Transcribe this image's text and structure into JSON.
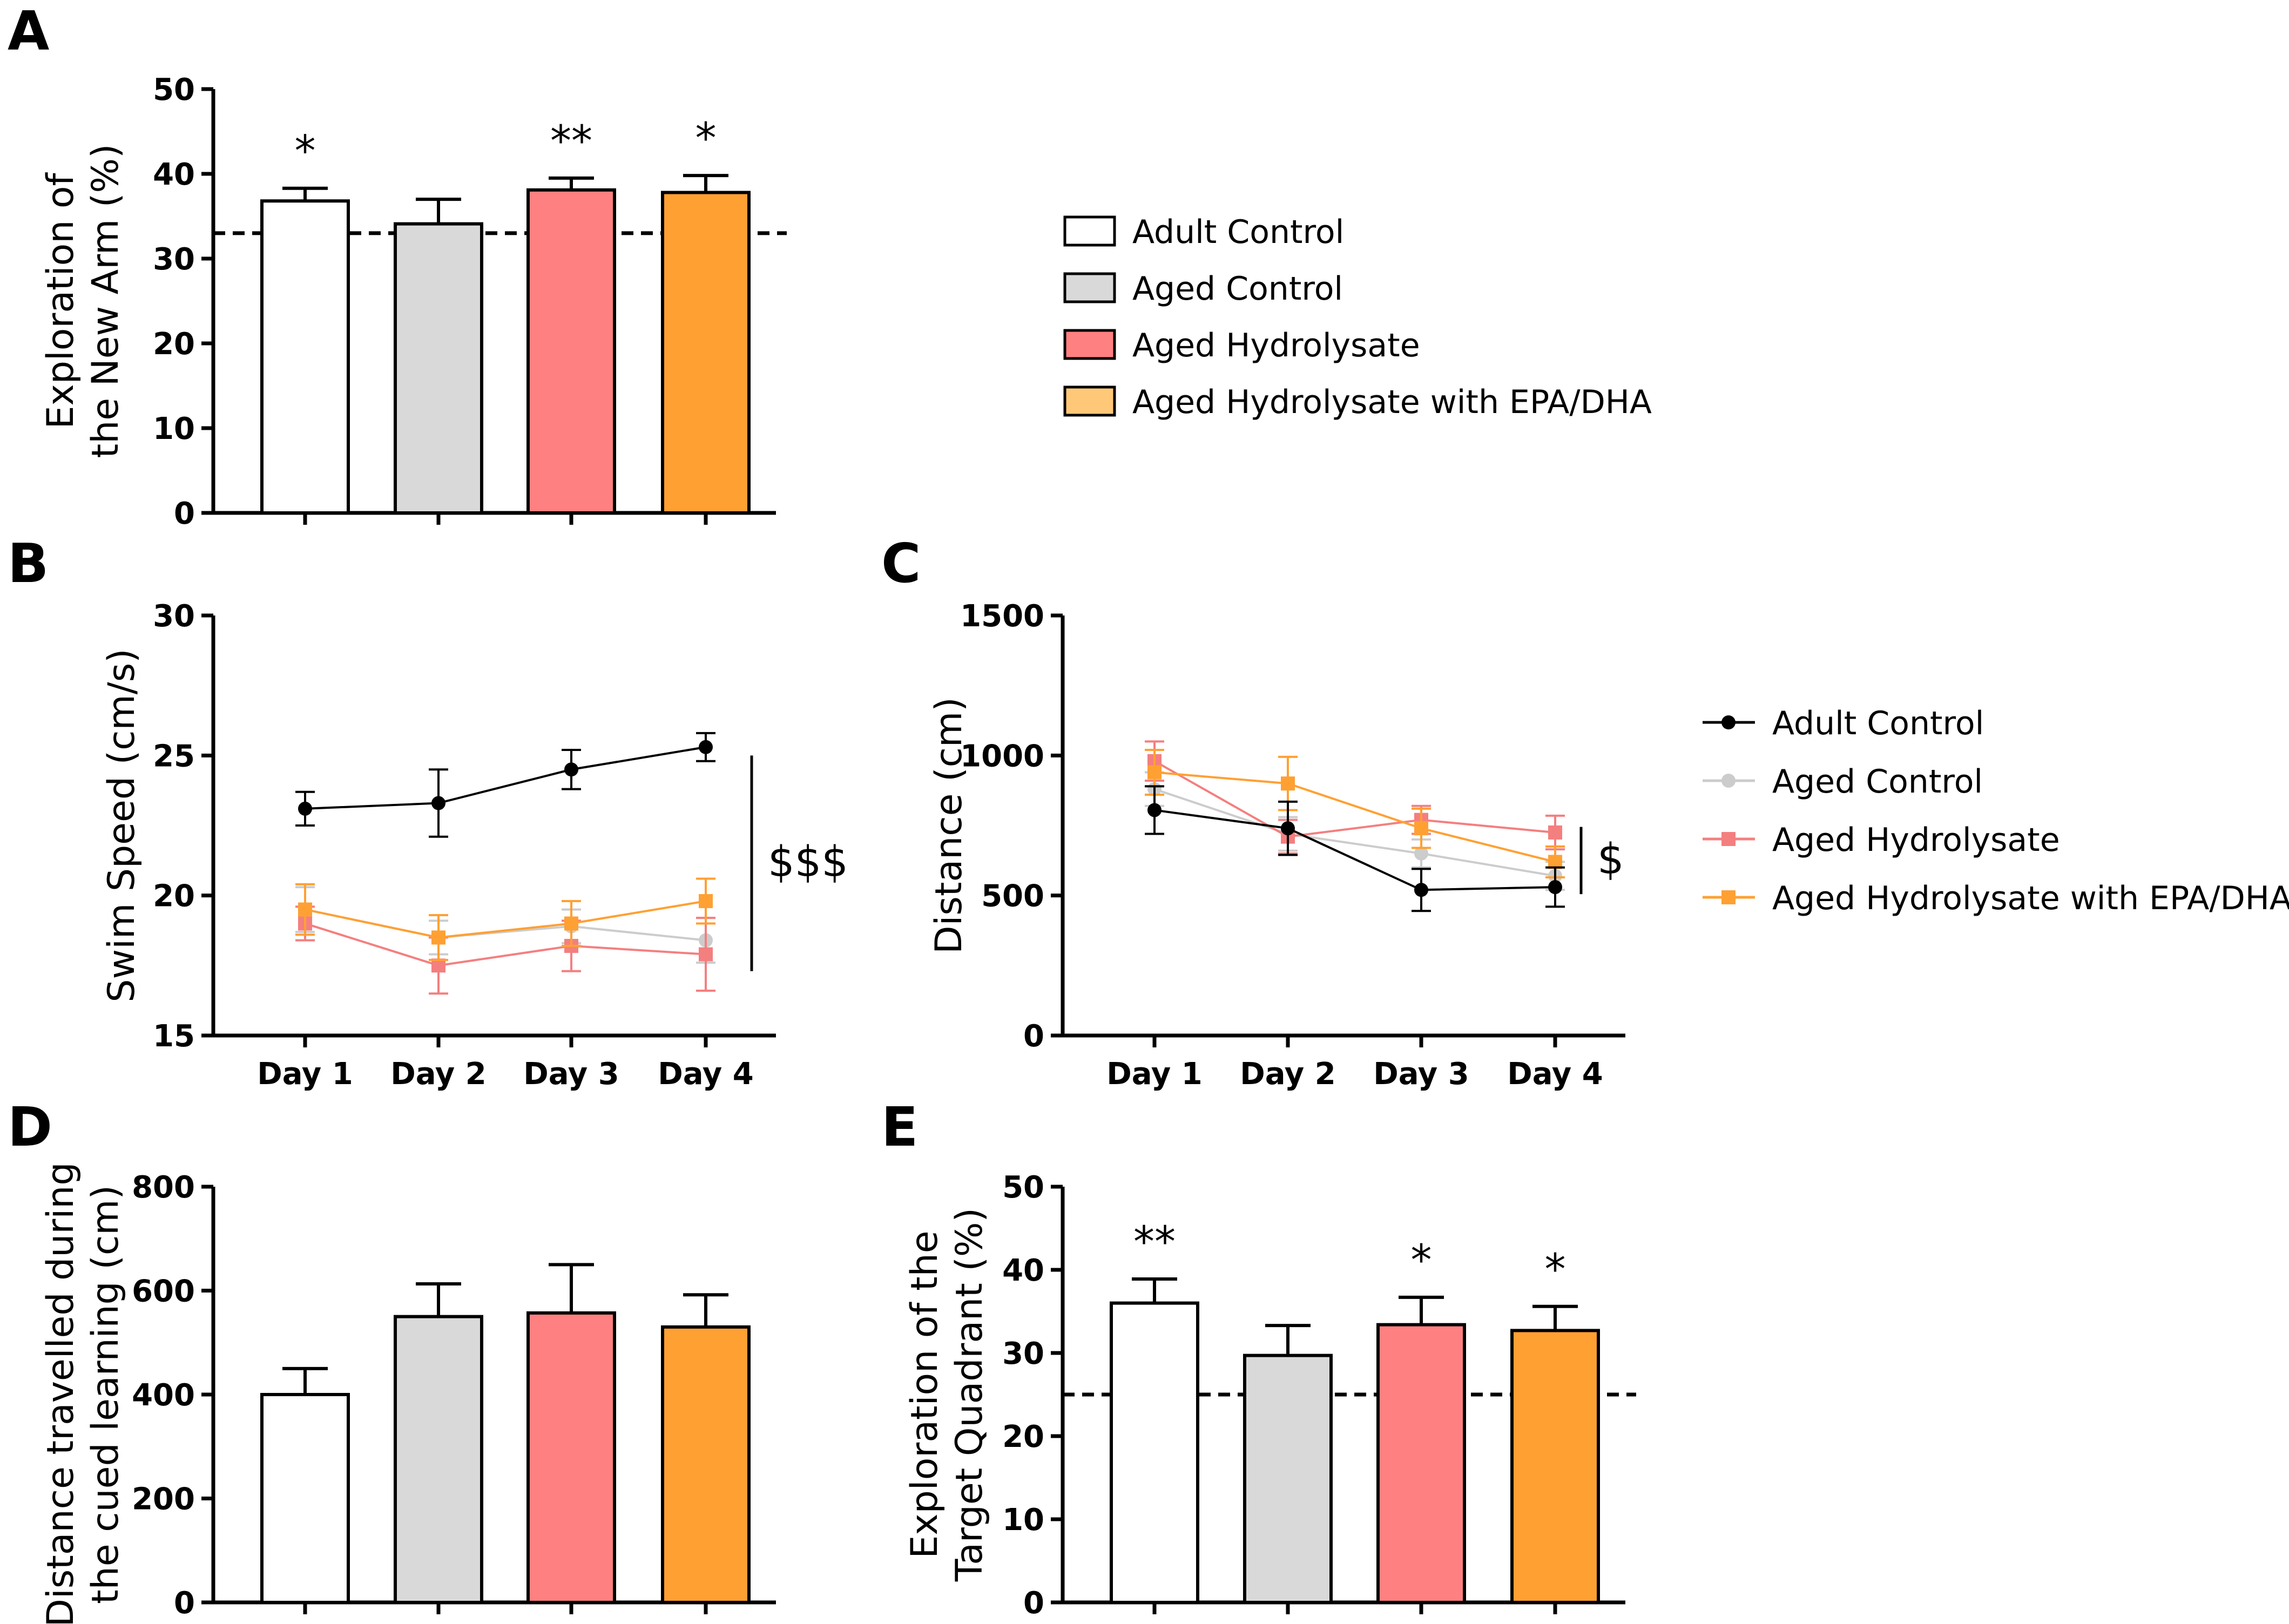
{
  "groups": [
    "Adult Control",
    "Aged Control",
    "Aged Hydrolysate",
    "Aged Hydrolysate with EPA/DHA"
  ],
  "colors": {
    "adult_bar": "#ffffff",
    "aged_bar": "#d9d9d9",
    "hydro_bar": "#ff8080",
    "epa_bar": "#ffa033",
    "adult_line": "#000000",
    "aged_line": "#cccccc",
    "hydro_line": "#f47f7f",
    "epa_line": "#ffa033",
    "epa_legend_fill": "#ffc878"
  },
  "legend_top": {
    "items": [
      "Adult Control",
      "Aged Control",
      "Aged Hydrolysate",
      "Aged Hydrolysate with EPA/DHA"
    ]
  },
  "legend_right": {
    "items": [
      "Adult Control",
      "Aged Control",
      "Aged Hydrolysate",
      "Aged Hydrolysate with EPA/DHA"
    ]
  },
  "chart_data": [
    {
      "panel": "A",
      "type": "bar",
      "ylabel": [
        "Exploration of",
        "the New Arm (%)"
      ],
      "ylim": [
        0,
        50
      ],
      "yticks": [
        "0",
        "10",
        "20",
        "30",
        "40",
        "50"
      ],
      "categories": [
        "Adult Control",
        "Aged Control",
        "Aged Hydrolysate",
        "Aged Hydrolysate with EPA/DHA"
      ],
      "values": [
        36.8,
        34.1,
        38.1,
        37.8
      ],
      "errors": [
        1.5,
        2.9,
        1.4,
        2.0
      ],
      "significance": [
        "*",
        "",
        "**",
        "*"
      ],
      "reference_line": 33
    },
    {
      "panel": "B",
      "type": "line",
      "ylabel": "Swim  Speed (cm/s)",
      "ylim": [
        15,
        30
      ],
      "yticks": [
        "15",
        "20",
        "25",
        "30"
      ],
      "x": [
        "Day 1",
        "Day 2",
        "Day 3",
        "Day 4"
      ],
      "series": [
        {
          "name": "Adult Control",
          "values": [
            23.1,
            23.3,
            24.5,
            25.3
          ],
          "errors": [
            0.6,
            1.2,
            0.7,
            0.5
          ]
        },
        {
          "name": "Aged Control",
          "values": [
            19.5,
            18.5,
            18.9,
            18.4
          ],
          "errors": [
            0.8,
            0.6,
            0.6,
            0.8
          ]
        },
        {
          "name": "Aged Hydrolysate",
          "values": [
            19.0,
            17.5,
            18.2,
            17.9
          ],
          "errors": [
            0.6,
            1.0,
            0.9,
            1.3
          ]
        },
        {
          "name": "Aged Hydrolysate with EPA/DHA",
          "values": [
            19.5,
            18.5,
            19.0,
            19.8
          ],
          "errors": [
            0.9,
            0.8,
            0.8,
            0.8
          ]
        }
      ],
      "annotation": "$$$"
    },
    {
      "panel": "C",
      "type": "line",
      "ylabel": "Distance (cm)",
      "ylim": [
        0,
        1500
      ],
      "yticks": [
        "0",
        "500",
        "1000",
        "1500"
      ],
      "x": [
        "Day 1",
        "Day 2",
        "Day 3",
        "Day 4"
      ],
      "series": [
        {
          "name": "Adult Control",
          "values": [
            805,
            740,
            520,
            530
          ],
          "errors": [
            85,
            95,
            75,
            70
          ]
        },
        {
          "name": "Aged Control",
          "values": [
            880,
            720,
            650,
            570
          ],
          "errors": [
            60,
            60,
            50,
            50
          ]
        },
        {
          "name": "Aged Hydrolysate",
          "values": [
            980,
            710,
            770,
            725
          ],
          "errors": [
            70,
            60,
            50,
            60
          ]
        },
        {
          "name": "Aged Hydrolysate with EPA/DHA",
          "values": [
            940,
            900,
            740,
            620
          ],
          "errors": [
            80,
            95,
            70,
            55
          ]
        }
      ],
      "annotation": "$"
    },
    {
      "panel": "D",
      "type": "bar",
      "ylabel": [
        "Distance travelled during",
        "the cued learning (cm)"
      ],
      "ylim": [
        0,
        800
      ],
      "yticks": [
        "0",
        "200",
        "400",
        "600",
        "800"
      ],
      "categories": [
        "Adult Control",
        "Aged Control",
        "Aged Hydrolysate",
        "Aged Hydrolysate with EPA/DHA"
      ],
      "values": [
        400,
        550,
        557,
        530
      ],
      "errors": [
        50,
        63,
        93,
        62
      ],
      "significance": [
        "",
        "",
        "",
        ""
      ]
    },
    {
      "panel": "E",
      "type": "bar",
      "ylabel": [
        "Exploration of the",
        "Target Quadrant (%)"
      ],
      "ylim": [
        0,
        50
      ],
      "yticks": [
        "0",
        "10",
        "20",
        "30",
        "40",
        "50"
      ],
      "categories": [
        "Adult Control",
        "Aged Control",
        "Aged Hydrolysate",
        "Aged Hydrolysate with EPA/DHA"
      ],
      "values": [
        36.0,
        29.7,
        33.4,
        32.7
      ],
      "errors": [
        2.9,
        3.6,
        3.3,
        2.9
      ],
      "significance": [
        "**",
        "",
        "*",
        "*"
      ],
      "reference_line": 25
    }
  ]
}
